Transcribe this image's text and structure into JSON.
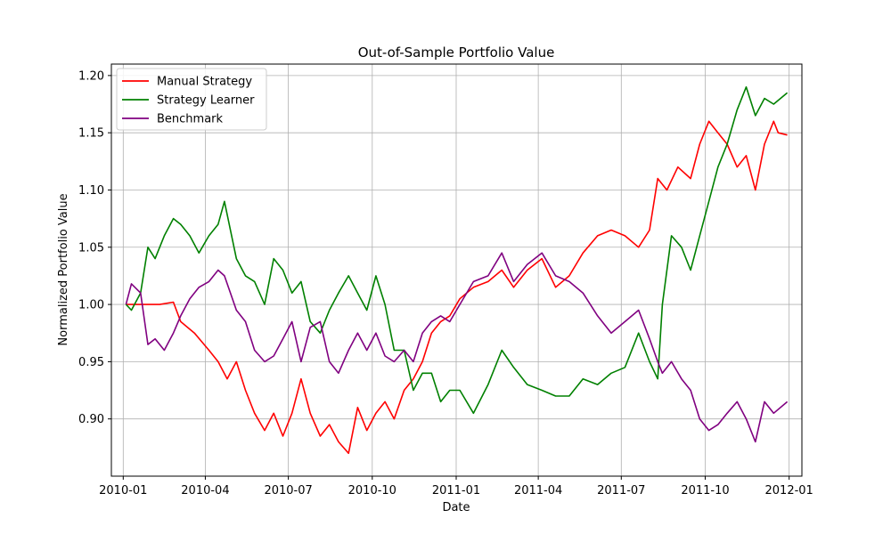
{
  "chart_data": {
    "type": "line",
    "title": "Out-of-Sample Portfolio Value",
    "xlabel": "Date",
    "ylabel": "Normalized Portfolio Value",
    "xlim": [
      "2009-12-19",
      "2012-01-15"
    ],
    "ylim": [
      0.85,
      1.21
    ],
    "x_ticks": [
      "2010-01",
      "2010-04",
      "2010-07",
      "2010-10",
      "2011-01",
      "2011-04",
      "2011-07",
      "2011-10",
      "2012-01"
    ],
    "y_ticks": [
      0.9,
      0.95,
      1.0,
      1.05,
      1.1,
      1.15,
      1.2
    ],
    "y_tick_labels": [
      "0.90",
      "0.95",
      "1.00",
      "1.05",
      "1.10",
      "1.15",
      "1.20"
    ],
    "grid": true,
    "legend_position": "top-left",
    "series": [
      {
        "name": "Manual Strategy",
        "color": "#ff0000",
        "points": [
          [
            "2010-01-04",
            1.0
          ],
          [
            "2010-01-20",
            1.0
          ],
          [
            "2010-02-10",
            1.0
          ],
          [
            "2010-02-25",
            1.002
          ],
          [
            "2010-03-05",
            0.985
          ],
          [
            "2010-03-20",
            0.975
          ],
          [
            "2010-04-05",
            0.96
          ],
          [
            "2010-04-15",
            0.95
          ],
          [
            "2010-04-25",
            0.935
          ],
          [
            "2010-05-05",
            0.95
          ],
          [
            "2010-05-15",
            0.925
          ],
          [
            "2010-05-25",
            0.905
          ],
          [
            "2010-06-05",
            0.89
          ],
          [
            "2010-06-15",
            0.905
          ],
          [
            "2010-06-25",
            0.885
          ],
          [
            "2010-07-05",
            0.905
          ],
          [
            "2010-07-15",
            0.935
          ],
          [
            "2010-07-25",
            0.905
          ],
          [
            "2010-08-05",
            0.885
          ],
          [
            "2010-08-15",
            0.895
          ],
          [
            "2010-08-25",
            0.88
          ],
          [
            "2010-09-05",
            0.87
          ],
          [
            "2010-09-15",
            0.91
          ],
          [
            "2010-09-25",
            0.89
          ],
          [
            "2010-10-05",
            0.905
          ],
          [
            "2010-10-15",
            0.915
          ],
          [
            "2010-10-25",
            0.9
          ],
          [
            "2010-11-05",
            0.925
          ],
          [
            "2010-11-15",
            0.935
          ],
          [
            "2010-11-25",
            0.95
          ],
          [
            "2010-12-05",
            0.975
          ],
          [
            "2010-12-15",
            0.985
          ],
          [
            "2010-12-25",
            0.99
          ],
          [
            "2011-01-05",
            1.005
          ],
          [
            "2011-01-20",
            1.015
          ],
          [
            "2011-02-05",
            1.02
          ],
          [
            "2011-02-20",
            1.03
          ],
          [
            "2011-03-05",
            1.015
          ],
          [
            "2011-03-20",
            1.03
          ],
          [
            "2011-04-05",
            1.04
          ],
          [
            "2011-04-20",
            1.015
          ],
          [
            "2011-05-05",
            1.025
          ],
          [
            "2011-05-20",
            1.045
          ],
          [
            "2011-06-05",
            1.06
          ],
          [
            "2011-06-20",
            1.065
          ],
          [
            "2011-07-05",
            1.06
          ],
          [
            "2011-07-20",
            1.05
          ],
          [
            "2011-08-01",
            1.065
          ],
          [
            "2011-08-10",
            1.11
          ],
          [
            "2011-08-20",
            1.1
          ],
          [
            "2011-09-01",
            1.12
          ],
          [
            "2011-09-15",
            1.11
          ],
          [
            "2011-09-25",
            1.14
          ],
          [
            "2011-10-05",
            1.16
          ],
          [
            "2011-10-15",
            1.15
          ],
          [
            "2011-10-25",
            1.14
          ],
          [
            "2011-11-05",
            1.12
          ],
          [
            "2011-11-15",
            1.13
          ],
          [
            "2011-11-25",
            1.1
          ],
          [
            "2011-12-05",
            1.14
          ],
          [
            "2011-12-15",
            1.16
          ],
          [
            "2011-12-20",
            1.15
          ],
          [
            "2011-12-30",
            1.148
          ]
        ]
      },
      {
        "name": "Strategy Learner",
        "color": "#008000",
        "points": [
          [
            "2010-01-04",
            1.0
          ],
          [
            "2010-01-10",
            0.995
          ],
          [
            "2010-01-20",
            1.01
          ],
          [
            "2010-01-28",
            1.05
          ],
          [
            "2010-02-05",
            1.04
          ],
          [
            "2010-02-15",
            1.06
          ],
          [
            "2010-02-25",
            1.075
          ],
          [
            "2010-03-05",
            1.07
          ],
          [
            "2010-03-15",
            1.06
          ],
          [
            "2010-03-25",
            1.045
          ],
          [
            "2010-04-05",
            1.06
          ],
          [
            "2010-04-15",
            1.07
          ],
          [
            "2010-04-22",
            1.09
          ],
          [
            "2010-05-05",
            1.04
          ],
          [
            "2010-05-15",
            1.025
          ],
          [
            "2010-05-25",
            1.02
          ],
          [
            "2010-06-05",
            1.0
          ],
          [
            "2010-06-15",
            1.04
          ],
          [
            "2010-06-25",
            1.03
          ],
          [
            "2010-07-05",
            1.01
          ],
          [
            "2010-07-15",
            1.02
          ],
          [
            "2010-07-25",
            0.985
          ],
          [
            "2010-08-05",
            0.975
          ],
          [
            "2010-08-15",
            0.995
          ],
          [
            "2010-08-25",
            1.01
          ],
          [
            "2010-09-05",
            1.025
          ],
          [
            "2010-09-15",
            1.01
          ],
          [
            "2010-09-25",
            0.995
          ],
          [
            "2010-10-05",
            1.025
          ],
          [
            "2010-10-15",
            1.0
          ],
          [
            "2010-10-25",
            0.96
          ],
          [
            "2010-11-05",
            0.96
          ],
          [
            "2010-11-15",
            0.925
          ],
          [
            "2010-11-25",
            0.94
          ],
          [
            "2010-12-05",
            0.94
          ],
          [
            "2010-12-15",
            0.915
          ],
          [
            "2010-12-25",
            0.925
          ],
          [
            "2011-01-05",
            0.925
          ],
          [
            "2011-01-20",
            0.905
          ],
          [
            "2011-02-05",
            0.93
          ],
          [
            "2011-02-20",
            0.96
          ],
          [
            "2011-03-05",
            0.945
          ],
          [
            "2011-03-20",
            0.93
          ],
          [
            "2011-04-05",
            0.925
          ],
          [
            "2011-04-20",
            0.92
          ],
          [
            "2011-05-05",
            0.92
          ],
          [
            "2011-05-20",
            0.935
          ],
          [
            "2011-06-05",
            0.93
          ],
          [
            "2011-06-20",
            0.94
          ],
          [
            "2011-07-05",
            0.945
          ],
          [
            "2011-07-20",
            0.975
          ],
          [
            "2011-08-01",
            0.95
          ],
          [
            "2011-08-10",
            0.935
          ],
          [
            "2011-08-15",
            1.0
          ],
          [
            "2011-08-25",
            1.06
          ],
          [
            "2011-09-05",
            1.05
          ],
          [
            "2011-09-15",
            1.03
          ],
          [
            "2011-09-25",
            1.06
          ],
          [
            "2011-10-05",
            1.09
          ],
          [
            "2011-10-15",
            1.12
          ],
          [
            "2011-10-25",
            1.14
          ],
          [
            "2011-11-05",
            1.17
          ],
          [
            "2011-11-15",
            1.19
          ],
          [
            "2011-11-25",
            1.165
          ],
          [
            "2011-12-05",
            1.18
          ],
          [
            "2011-12-15",
            1.175
          ],
          [
            "2011-12-30",
            1.185
          ]
        ]
      },
      {
        "name": "Benchmark",
        "color": "#800080",
        "points": [
          [
            "2010-01-04",
            1.0
          ],
          [
            "2010-01-10",
            1.018
          ],
          [
            "2010-01-20",
            1.01
          ],
          [
            "2010-01-28",
            0.965
          ],
          [
            "2010-02-05",
            0.97
          ],
          [
            "2010-02-15",
            0.96
          ],
          [
            "2010-02-25",
            0.975
          ],
          [
            "2010-03-05",
            0.99
          ],
          [
            "2010-03-15",
            1.005
          ],
          [
            "2010-03-25",
            1.015
          ],
          [
            "2010-04-05",
            1.02
          ],
          [
            "2010-04-15",
            1.03
          ],
          [
            "2010-04-22",
            1.025
          ],
          [
            "2010-05-05",
            0.995
          ],
          [
            "2010-05-15",
            0.985
          ],
          [
            "2010-05-25",
            0.96
          ],
          [
            "2010-06-05",
            0.95
          ],
          [
            "2010-06-15",
            0.955
          ],
          [
            "2010-06-25",
            0.97
          ],
          [
            "2010-07-05",
            0.985
          ],
          [
            "2010-07-15",
            0.95
          ],
          [
            "2010-07-25",
            0.98
          ],
          [
            "2010-08-05",
            0.985
          ],
          [
            "2010-08-15",
            0.95
          ],
          [
            "2010-08-25",
            0.94
          ],
          [
            "2010-09-05",
            0.96
          ],
          [
            "2010-09-15",
            0.975
          ],
          [
            "2010-09-25",
            0.96
          ],
          [
            "2010-10-05",
            0.975
          ],
          [
            "2010-10-15",
            0.955
          ],
          [
            "2010-10-25",
            0.95
          ],
          [
            "2010-11-05",
            0.96
          ],
          [
            "2010-11-15",
            0.95
          ],
          [
            "2010-11-25",
            0.975
          ],
          [
            "2010-12-05",
            0.985
          ],
          [
            "2010-12-15",
            0.99
          ],
          [
            "2010-12-25",
            0.985
          ],
          [
            "2011-01-05",
            1.0
          ],
          [
            "2011-01-20",
            1.02
          ],
          [
            "2011-02-05",
            1.025
          ],
          [
            "2011-02-20",
            1.045
          ],
          [
            "2011-03-05",
            1.02
          ],
          [
            "2011-03-20",
            1.035
          ],
          [
            "2011-04-05",
            1.045
          ],
          [
            "2011-04-20",
            1.025
          ],
          [
            "2011-05-05",
            1.02
          ],
          [
            "2011-05-20",
            1.01
          ],
          [
            "2011-06-05",
            0.99
          ],
          [
            "2011-06-20",
            0.975
          ],
          [
            "2011-07-05",
            0.985
          ],
          [
            "2011-07-20",
            0.995
          ],
          [
            "2011-08-01",
            0.97
          ],
          [
            "2011-08-10",
            0.95
          ],
          [
            "2011-08-15",
            0.94
          ],
          [
            "2011-08-25",
            0.95
          ],
          [
            "2011-09-05",
            0.935
          ],
          [
            "2011-09-15",
            0.925
          ],
          [
            "2011-09-25",
            0.9
          ],
          [
            "2011-10-05",
            0.89
          ],
          [
            "2011-10-15",
            0.895
          ],
          [
            "2011-10-25",
            0.905
          ],
          [
            "2011-11-05",
            0.915
          ],
          [
            "2011-11-15",
            0.9
          ],
          [
            "2011-11-25",
            0.88
          ],
          [
            "2011-12-05",
            0.915
          ],
          [
            "2011-12-15",
            0.905
          ],
          [
            "2011-12-30",
            0.915
          ]
        ]
      }
    ]
  }
}
